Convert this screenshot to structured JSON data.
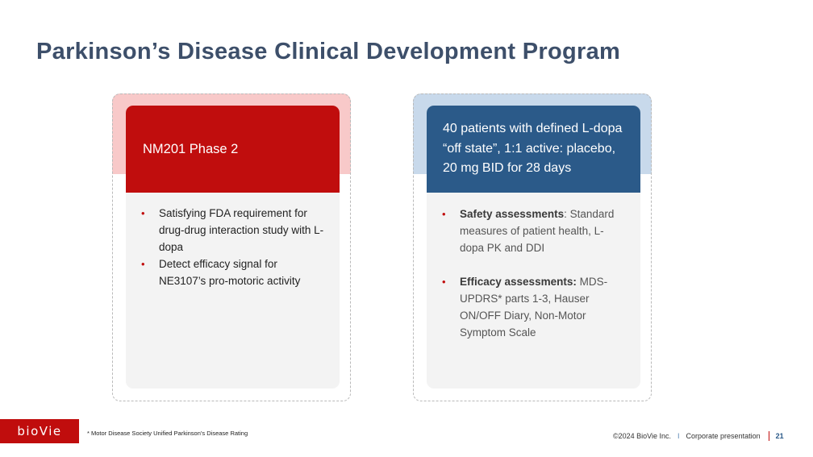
{
  "slide": {
    "title": "Parkinson’s Disease Clinical Development Program"
  },
  "left_card": {
    "header": "NM201 Phase 2",
    "bullets": [
      "Satisfying FDA requirement for drug-drug interaction study with L-dopa",
      "Detect efficacy signal for NE3107’s pro-motoric activity"
    ]
  },
  "right_card": {
    "header": "40 patients with defined L-dopa “off state”, 1:1 active: placebo, 20 mg BID for 28 days",
    "bullets": [
      {
        "label": "Safety assessments",
        "text": ": Standard measures of patient health, L-dopa PK and DDI"
      },
      {
        "label": "Efficacy assessments:",
        "text": " MDS-UPDRS* parts 1-3, Hauser ON/OFF Diary, Non-Motor Symptom Scale"
      }
    ]
  },
  "footer": {
    "logo": "bioVie",
    "footnote": "* Motor Disease Society Unified Parkinson’s Disease Rating",
    "copyright": "©2024 BioVie Inc.",
    "separator": "I",
    "presentation": "Corporate presentation",
    "page_number": "21"
  },
  "colors": {
    "title": "#3d4f6a",
    "brand_red": "#c00d0d",
    "brand_blue": "#2b5a89",
    "pink_band": "#f8c9c9",
    "blue_band": "#c8d9eb"
  }
}
